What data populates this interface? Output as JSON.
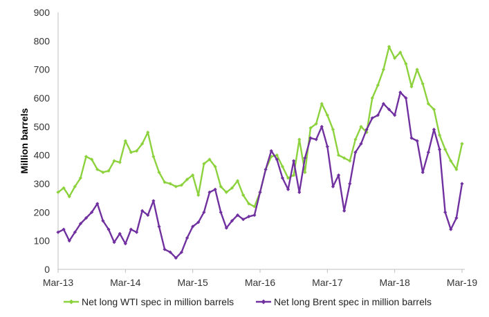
{
  "chart_data": {
    "type": "line",
    "xlabel": "",
    "ylabel": "Million barrels",
    "ylim": [
      0,
      900
    ],
    "yticks": [
      0,
      100,
      200,
      300,
      400,
      500,
      600,
      700,
      800,
      900
    ],
    "xlim": [
      "2013-03",
      "2019-03"
    ],
    "xticks": [
      "Mar-13",
      "Mar-14",
      "Mar-15",
      "Mar-16",
      "Mar-17",
      "Mar-18",
      "Mar-19"
    ],
    "grid": false,
    "legend": "bottom",
    "marker": "diamond",
    "series": [
      {
        "name": "Net long WTI spec in million barrels",
        "color": "#8cd23c",
        "points": [
          [
            "2013-03",
            270
          ],
          [
            "2013-04",
            285
          ],
          [
            "2013-05",
            255
          ],
          [
            "2013-06",
            290
          ],
          [
            "2013-07",
            320
          ],
          [
            "2013-08",
            395
          ],
          [
            "2013-09",
            385
          ],
          [
            "2013-10",
            350
          ],
          [
            "2013-11",
            340
          ],
          [
            "2013-12",
            345
          ],
          [
            "2014-01",
            380
          ],
          [
            "2014-02",
            375
          ],
          [
            "2014-03",
            450
          ],
          [
            "2014-04",
            410
          ],
          [
            "2014-05",
            415
          ],
          [
            "2014-06",
            440
          ],
          [
            "2014-07",
            480
          ],
          [
            "2014-08",
            395
          ],
          [
            "2014-09",
            340
          ],
          [
            "2014-10",
            305
          ],
          [
            "2014-11",
            300
          ],
          [
            "2014-12",
            290
          ],
          [
            "2015-01",
            295
          ],
          [
            "2015-02",
            315
          ],
          [
            "2015-03",
            330
          ],
          [
            "2015-04",
            260
          ],
          [
            "2015-05",
            370
          ],
          [
            "2015-06",
            385
          ],
          [
            "2015-07",
            360
          ],
          [
            "2015-08",
            290
          ],
          [
            "2015-09",
            270
          ],
          [
            "2015-10",
            285
          ],
          [
            "2015-11",
            310
          ],
          [
            "2015-12",
            260
          ],
          [
            "2016-01",
            230
          ],
          [
            "2016-02",
            220
          ],
          [
            "2016-03",
            270
          ],
          [
            "2016-04",
            350
          ],
          [
            "2016-05",
            395
          ],
          [
            "2016-06",
            400
          ],
          [
            "2016-07",
            360
          ],
          [
            "2016-08",
            320
          ],
          [
            "2016-09",
            330
          ],
          [
            "2016-10",
            455
          ],
          [
            "2016-11",
            340
          ],
          [
            "2016-12",
            495
          ],
          [
            "2017-01",
            510
          ],
          [
            "2017-02",
            580
          ],
          [
            "2017-03",
            540
          ],
          [
            "2017-04",
            490
          ],
          [
            "2017-05",
            400
          ],
          [
            "2017-06",
            390
          ],
          [
            "2017-07",
            380
          ],
          [
            "2017-08",
            455
          ],
          [
            "2017-09",
            500
          ],
          [
            "2017-10",
            480
          ],
          [
            "2017-11",
            600
          ],
          [
            "2017-12",
            645
          ],
          [
            "2018-01",
            700
          ],
          [
            "2018-02",
            780
          ],
          [
            "2018-03",
            740
          ],
          [
            "2018-04",
            760
          ],
          [
            "2018-05",
            720
          ],
          [
            "2018-06",
            640
          ],
          [
            "2018-07",
            700
          ],
          [
            "2018-08",
            650
          ],
          [
            "2018-09",
            580
          ],
          [
            "2018-10",
            560
          ],
          [
            "2018-11",
            470
          ],
          [
            "2018-12",
            420
          ],
          [
            "2019-01",
            380
          ],
          [
            "2019-02",
            350
          ],
          [
            "2019-03",
            440
          ]
        ]
      },
      {
        "name": "Net long Brent spec in million barrels",
        "color": "#7030a0",
        "points": [
          [
            "2013-03",
            130
          ],
          [
            "2013-04",
            140
          ],
          [
            "2013-05",
            100
          ],
          [
            "2013-06",
            130
          ],
          [
            "2013-07",
            160
          ],
          [
            "2013-08",
            180
          ],
          [
            "2013-09",
            200
          ],
          [
            "2013-10",
            230
          ],
          [
            "2013-11",
            170
          ],
          [
            "2013-12",
            140
          ],
          [
            "2014-01",
            95
          ],
          [
            "2014-02",
            125
          ],
          [
            "2014-03",
            90
          ],
          [
            "2014-04",
            140
          ],
          [
            "2014-05",
            130
          ],
          [
            "2014-06",
            205
          ],
          [
            "2014-07",
            190
          ],
          [
            "2014-08",
            240
          ],
          [
            "2014-09",
            150
          ],
          [
            "2014-10",
            70
          ],
          [
            "2014-11",
            60
          ],
          [
            "2014-12",
            40
          ],
          [
            "2015-01",
            60
          ],
          [
            "2015-02",
            110
          ],
          [
            "2015-03",
            150
          ],
          [
            "2015-04",
            165
          ],
          [
            "2015-05",
            200
          ],
          [
            "2015-06",
            270
          ],
          [
            "2015-07",
            280
          ],
          [
            "2015-08",
            200
          ],
          [
            "2015-09",
            145
          ],
          [
            "2015-10",
            170
          ],
          [
            "2015-11",
            190
          ],
          [
            "2015-12",
            175
          ],
          [
            "2016-01",
            185
          ],
          [
            "2016-02",
            190
          ],
          [
            "2016-03",
            270
          ],
          [
            "2016-04",
            350
          ],
          [
            "2016-05",
            415
          ],
          [
            "2016-06",
            385
          ],
          [
            "2016-07",
            320
          ],
          [
            "2016-08",
            280
          ],
          [
            "2016-09",
            380
          ],
          [
            "2016-10",
            270
          ],
          [
            "2016-11",
            390
          ],
          [
            "2016-12",
            460
          ],
          [
            "2017-01",
            455
          ],
          [
            "2017-02",
            500
          ],
          [
            "2017-03",
            430
          ],
          [
            "2017-04",
            290
          ],
          [
            "2017-05",
            330
          ],
          [
            "2017-06",
            205
          ],
          [
            "2017-07",
            300
          ],
          [
            "2017-08",
            410
          ],
          [
            "2017-09",
            440
          ],
          [
            "2017-10",
            490
          ],
          [
            "2017-11",
            530
          ],
          [
            "2017-12",
            540
          ],
          [
            "2018-01",
            580
          ],
          [
            "2018-02",
            560
          ],
          [
            "2018-03",
            540
          ],
          [
            "2018-04",
            620
          ],
          [
            "2018-05",
            600
          ],
          [
            "2018-06",
            460
          ],
          [
            "2018-07",
            450
          ],
          [
            "2018-08",
            340
          ],
          [
            "2018-09",
            410
          ],
          [
            "2018-10",
            490
          ],
          [
            "2018-11",
            420
          ],
          [
            "2018-12",
            200
          ],
          [
            "2019-01",
            140
          ],
          [
            "2019-02",
            180
          ],
          [
            "2019-03",
            300
          ]
        ]
      }
    ]
  }
}
